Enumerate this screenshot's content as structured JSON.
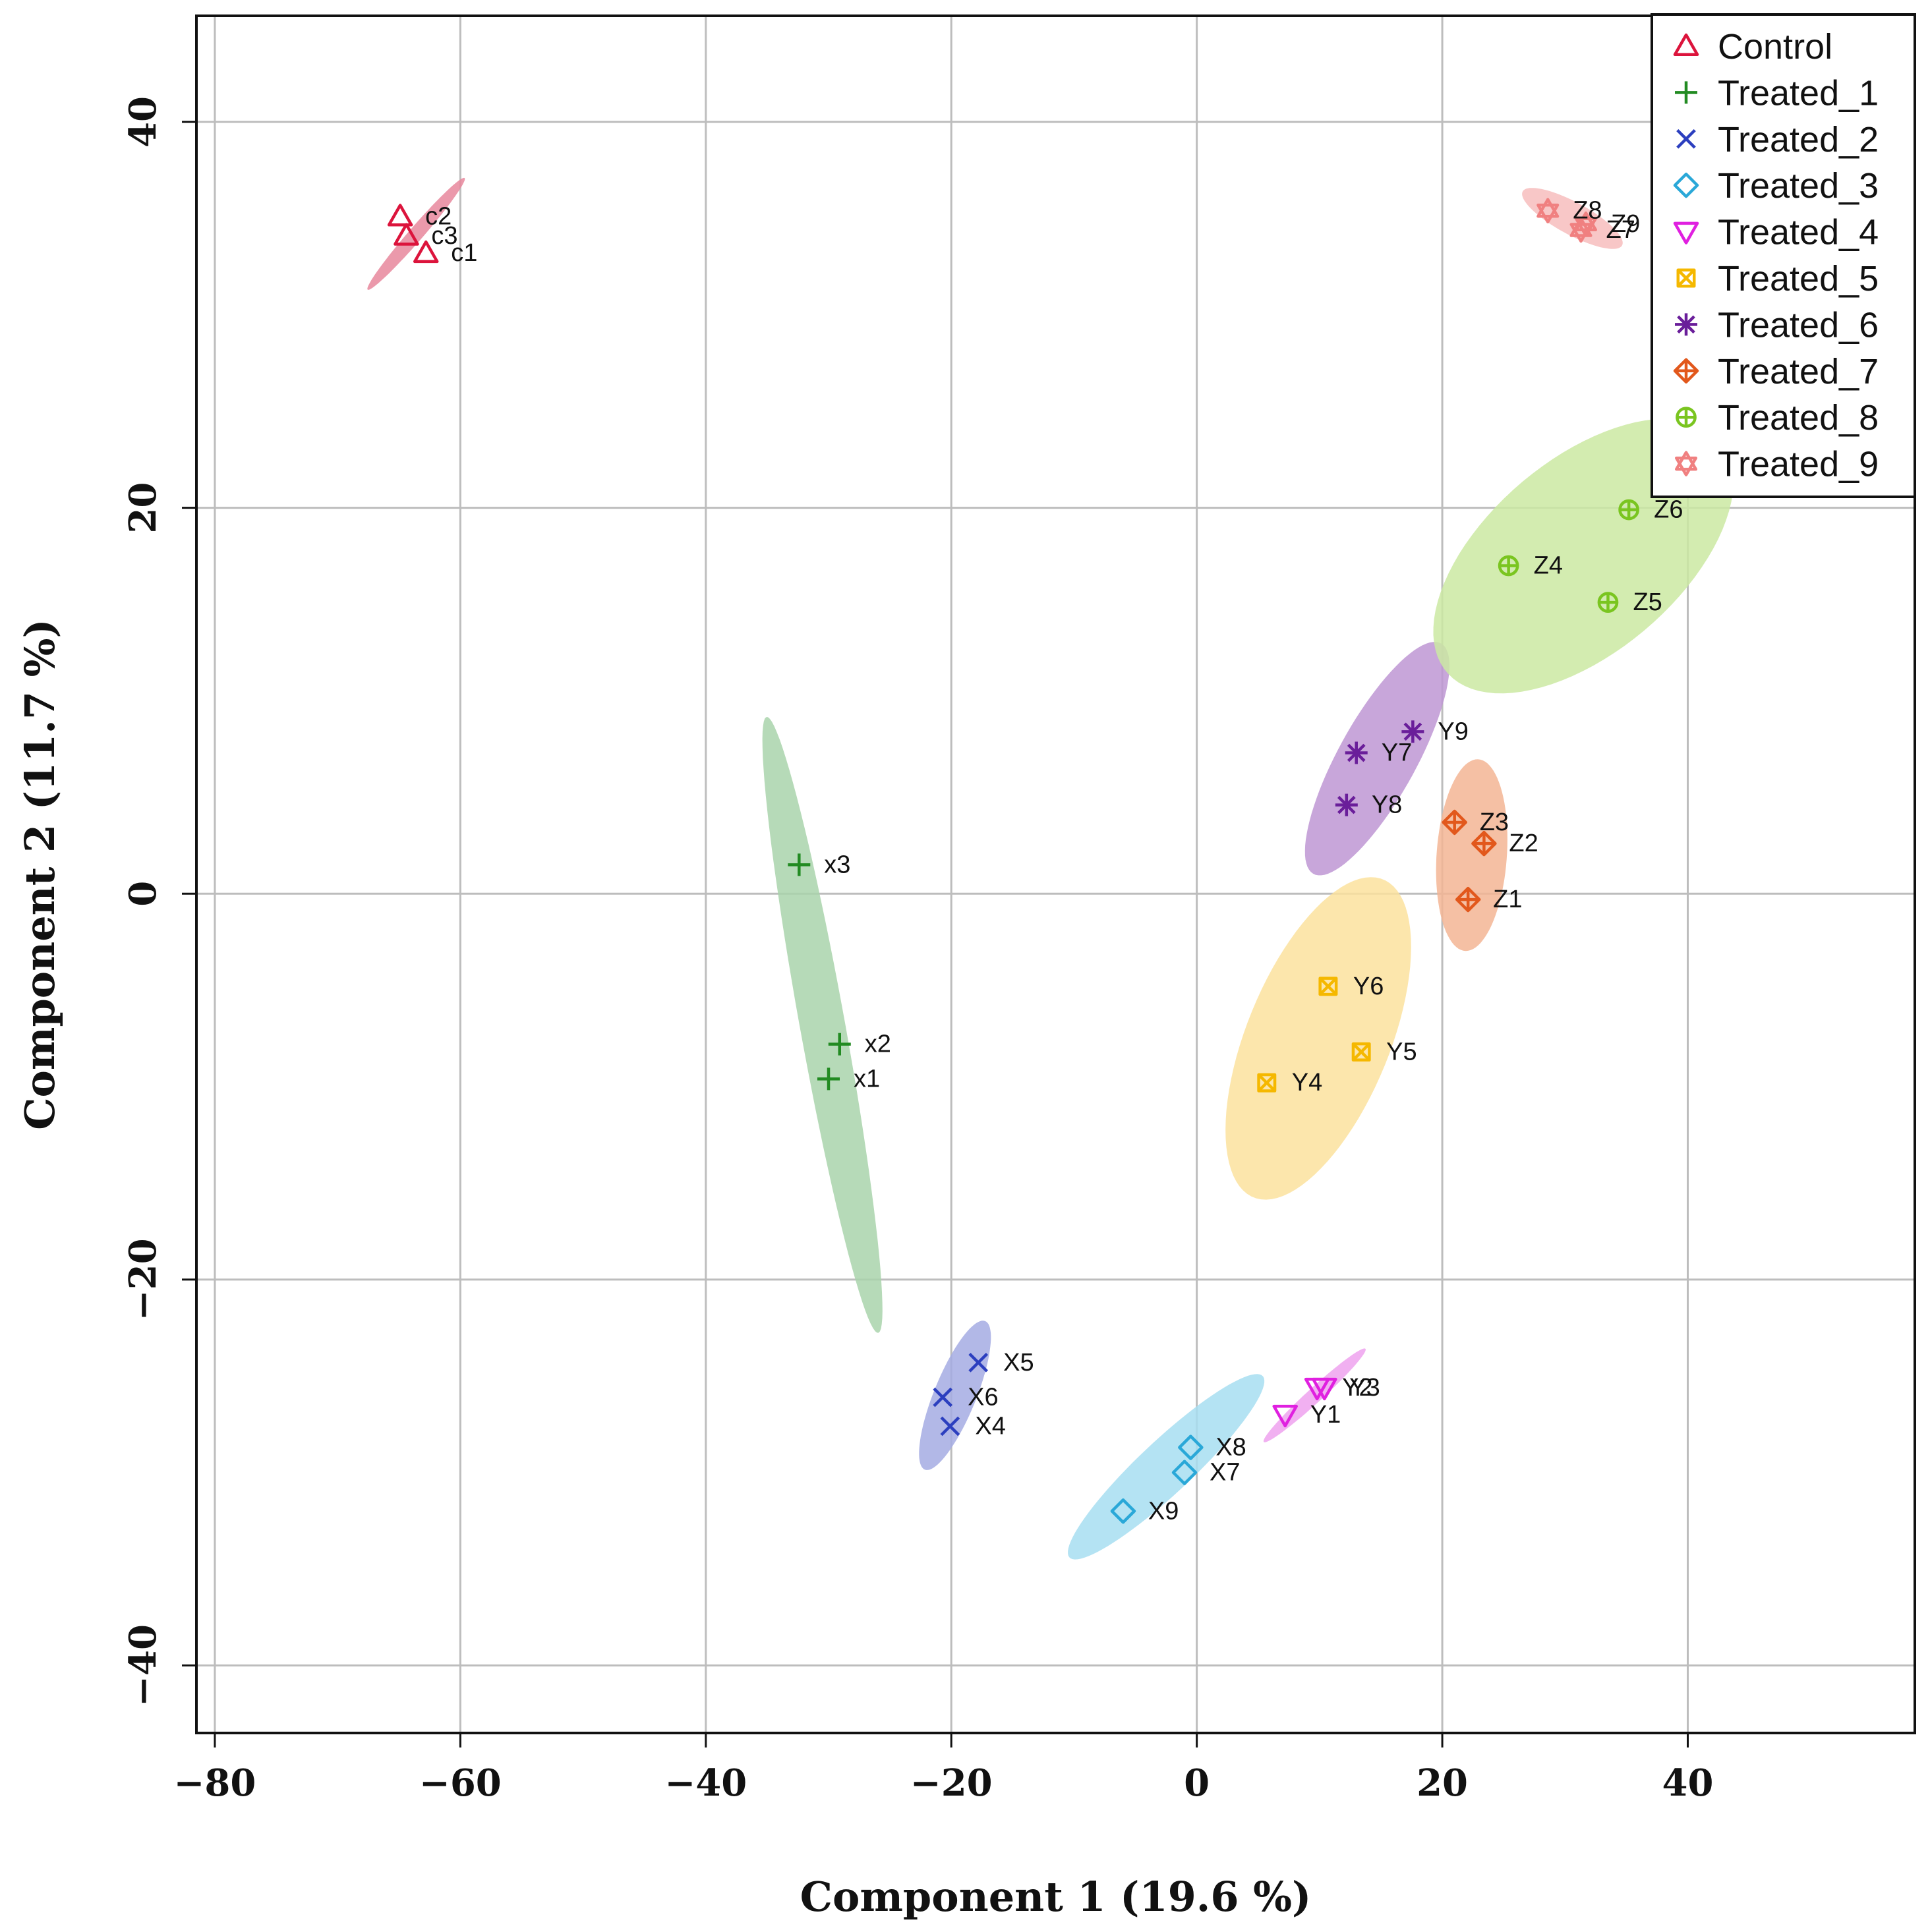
{
  "chart_data": {
    "type": "scatter",
    "title": "",
    "xlabel": "Component 1 (19.6 %)",
    "ylabel": "Component 2 (11.7 %)",
    "xlim": [
      -81.5,
      58.5
    ],
    "ylim": [
      -43.5,
      45.5
    ],
    "xticks": [
      {
        "value": -80,
        "label": "−80"
      },
      {
        "value": -60,
        "label": "−60"
      },
      {
        "value": -40,
        "label": "−40"
      },
      {
        "value": -20,
        "label": "−20"
      },
      {
        "value": 0,
        "label": "0"
      },
      {
        "value": 20,
        "label": "20"
      },
      {
        "value": 40,
        "label": "40"
      }
    ],
    "yticks": [
      {
        "value": -40,
        "label": "−40"
      },
      {
        "value": -20,
        "label": "−20"
      },
      {
        "value": 0,
        "label": "0"
      },
      {
        "value": 20,
        "label": "20"
      },
      {
        "value": 40,
        "label": "40"
      }
    ],
    "grid": true,
    "legend_position": "top-right",
    "series": [
      {
        "name": "Control",
        "symbol": "triangle",
        "color": "#DC143C",
        "fill": "#E8879C",
        "ellipse": {
          "cx": -63.6,
          "cy": 34.2,
          "semi_major": 4.9,
          "semi_minor": 0.45,
          "angle_deg": 36
        },
        "points": [
          {
            "label": "c1",
            "x": -62.8,
            "y": 33.2
          },
          {
            "label": "c2",
            "x": -64.9,
            "y": 35.1
          },
          {
            "label": "c3",
            "x": -64.4,
            "y": 34.1
          }
        ]
      },
      {
        "name": "Treated_1",
        "symbol": "plus",
        "color": "#228B22",
        "fill": "#A9D3AC",
        "ellipse": {
          "cx": -30.5,
          "cy": -6.8,
          "semi_major": 16.6,
          "semi_minor": 1.8,
          "angle_deg": -74
        },
        "points": [
          {
            "label": "x1",
            "x": -30.0,
            "y": -9.6
          },
          {
            "label": "x2",
            "x": -29.1,
            "y": -7.8
          },
          {
            "label": "x3",
            "x": -32.4,
            "y": 1.5
          }
        ]
      },
      {
        "name": "Treated_2",
        "symbol": "cross",
        "color": "#2C3FBF",
        "fill": "#A4ABE3",
        "ellipse": {
          "cx": -19.7,
          "cy": -26.0,
          "semi_major": 4.6,
          "semi_minor": 1.55,
          "angle_deg": 55
        },
        "points": [
          {
            "label": "X4",
            "x": -20.1,
            "y": -27.6
          },
          {
            "label": "X5",
            "x": -17.8,
            "y": -24.3
          },
          {
            "label": "X6",
            "x": -20.7,
            "y": -26.1
          }
        ]
      },
      {
        "name": "Treated_3",
        "symbol": "diamond",
        "color": "#2AA8D8",
        "fill": "#A7DEF1",
        "ellipse": {
          "cx": -2.5,
          "cy": -29.7,
          "semi_major": 9.2,
          "semi_minor": 1.6,
          "angle_deg": 30
        },
        "points": [
          {
            "label": "X7",
            "x": -1.0,
            "y": -30.0
          },
          {
            "label": "X8",
            "x": -0.5,
            "y": -28.7
          },
          {
            "label": "X9",
            "x": -6.0,
            "y": -32.0
          }
        ]
      },
      {
        "name": "Treated_4",
        "symbol": "triangle-down",
        "color": "#E020E0",
        "fill": "#EFA2EF",
        "ellipse": {
          "cx": 9.6,
          "cy": -26.0,
          "semi_major": 4.8,
          "semi_minor": 0.45,
          "angle_deg": 30
        },
        "points": [
          {
            "label": "Y1",
            "x": 7.2,
            "y": -27.0
          },
          {
            "label": "Y2",
            "x": 9.8,
            "y": -25.6
          },
          {
            "label": "Y3",
            "x": 10.4,
            "y": -25.6
          }
        ]
      },
      {
        "name": "Treated_5",
        "symbol": "square-cross",
        "color": "#F5B800",
        "fill": "#FBE29E",
        "ellipse": {
          "cx": 9.9,
          "cy": -7.5,
          "semi_major": 10.0,
          "semi_minor": 5.2,
          "angle_deg": 50
        },
        "points": [
          {
            "label": "Y4",
            "x": 5.7,
            "y": -9.8
          },
          {
            "label": "Y5",
            "x": 13.4,
            "y": -8.2
          },
          {
            "label": "Y6",
            "x": 10.7,
            "y": -4.8
          }
        ]
      },
      {
        "name": "Treated_6",
        "symbol": "asterisk",
        "color": "#6A1E9A",
        "fill": "#BE96D3",
        "ellipse": {
          "cx": 14.7,
          "cy": 7.0,
          "semi_major": 8.0,
          "semi_minor": 2.7,
          "angle_deg": 46
        },
        "points": [
          {
            "label": "Y7",
            "x": 13.0,
            "y": 7.3
          },
          {
            "label": "Y8",
            "x": 12.2,
            "y": 4.6
          },
          {
            "label": "Y9",
            "x": 17.6,
            "y": 8.4
          }
        ]
      },
      {
        "name": "Treated_7",
        "symbol": "diamond-plus",
        "color": "#E2581C",
        "fill": "#F3B594",
        "ellipse": {
          "cx": 22.4,
          "cy": 2.0,
          "semi_major": 5.0,
          "semi_minor": 2.85,
          "angle_deg": 82
        },
        "points": [
          {
            "label": "Z1",
            "x": 22.1,
            "y": -0.3
          },
          {
            "label": "Z2",
            "x": 23.4,
            "y": 2.6
          },
          {
            "label": "Z3",
            "x": 21.0,
            "y": 3.7
          }
        ]
      },
      {
        "name": "Treated_8",
        "symbol": "circle-plus",
        "color": "#7AC520",
        "fill": "#CBE9A2",
        "ellipse": {
          "cx": 31.5,
          "cy": 17.5,
          "semi_major": 13.0,
          "semi_minor": 5.6,
          "angle_deg": 22
        },
        "points": [
          {
            "label": "Z4",
            "x": 25.4,
            "y": 17.0
          },
          {
            "label": "Z5",
            "x": 33.5,
            "y": 15.1
          },
          {
            "label": "Z6",
            "x": 35.2,
            "y": 19.9
          }
        ]
      },
      {
        "name": "Treated_9",
        "symbol": "star-of-david",
        "color": "#F08080",
        "fill": "#F7BDBD",
        "ellipse": {
          "cx": 30.6,
          "cy": 35.0,
          "semi_major": 4.3,
          "semi_minor": 0.9,
          "angle_deg": -18
        },
        "points": [
          {
            "label": "Z7",
            "x": 31.3,
            "y": 34.4
          },
          {
            "label": "Z8",
            "x": 28.6,
            "y": 35.4
          },
          {
            "label": "Z9",
            "x": 31.7,
            "y": 34.7
          }
        ]
      }
    ]
  }
}
